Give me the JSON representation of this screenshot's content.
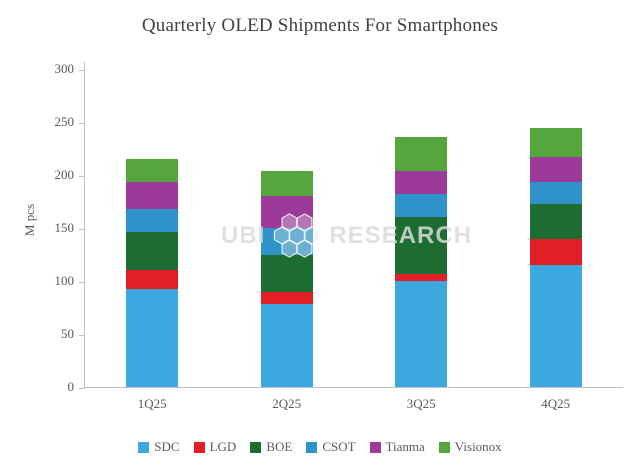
{
  "chart_data": {
    "type": "bar",
    "stacked": true,
    "title": "Quarterly OLED Shipments For Smartphones",
    "xlabel": "",
    "ylabel": "M pcs",
    "ylim": [
      0,
      300
    ],
    "yticks": [
      0,
      50,
      100,
      150,
      200,
      250,
      300
    ],
    "categories": [
      "1Q25",
      "2Q25",
      "3Q25",
      "4Q25"
    ],
    "series": [
      {
        "name": "SDC",
        "color": "#3BA8DF",
        "values": [
          92,
          78,
          100,
          115
        ]
      },
      {
        "name": "LGD",
        "color": "#E01F26",
        "values": [
          18,
          12,
          7,
          25
        ]
      },
      {
        "name": "BOE",
        "color": "#1D6D33",
        "values": [
          36,
          35,
          53,
          33
        ]
      },
      {
        "name": "CSOT",
        "color": "#2D93C8",
        "values": [
          22,
          25,
          22,
          20
        ]
      },
      {
        "name": "Tianma",
        "color": "#9B3A98",
        "values": [
          25,
          30,
          22,
          24
        ]
      },
      {
        "name": "Visionox",
        "color": "#55A63C",
        "values": [
          22,
          24,
          32,
          27
        ]
      }
    ],
    "grid": false,
    "legend_position": "bottom"
  },
  "watermark": {
    "left": "UBI",
    "right": "RESEARCH"
  }
}
